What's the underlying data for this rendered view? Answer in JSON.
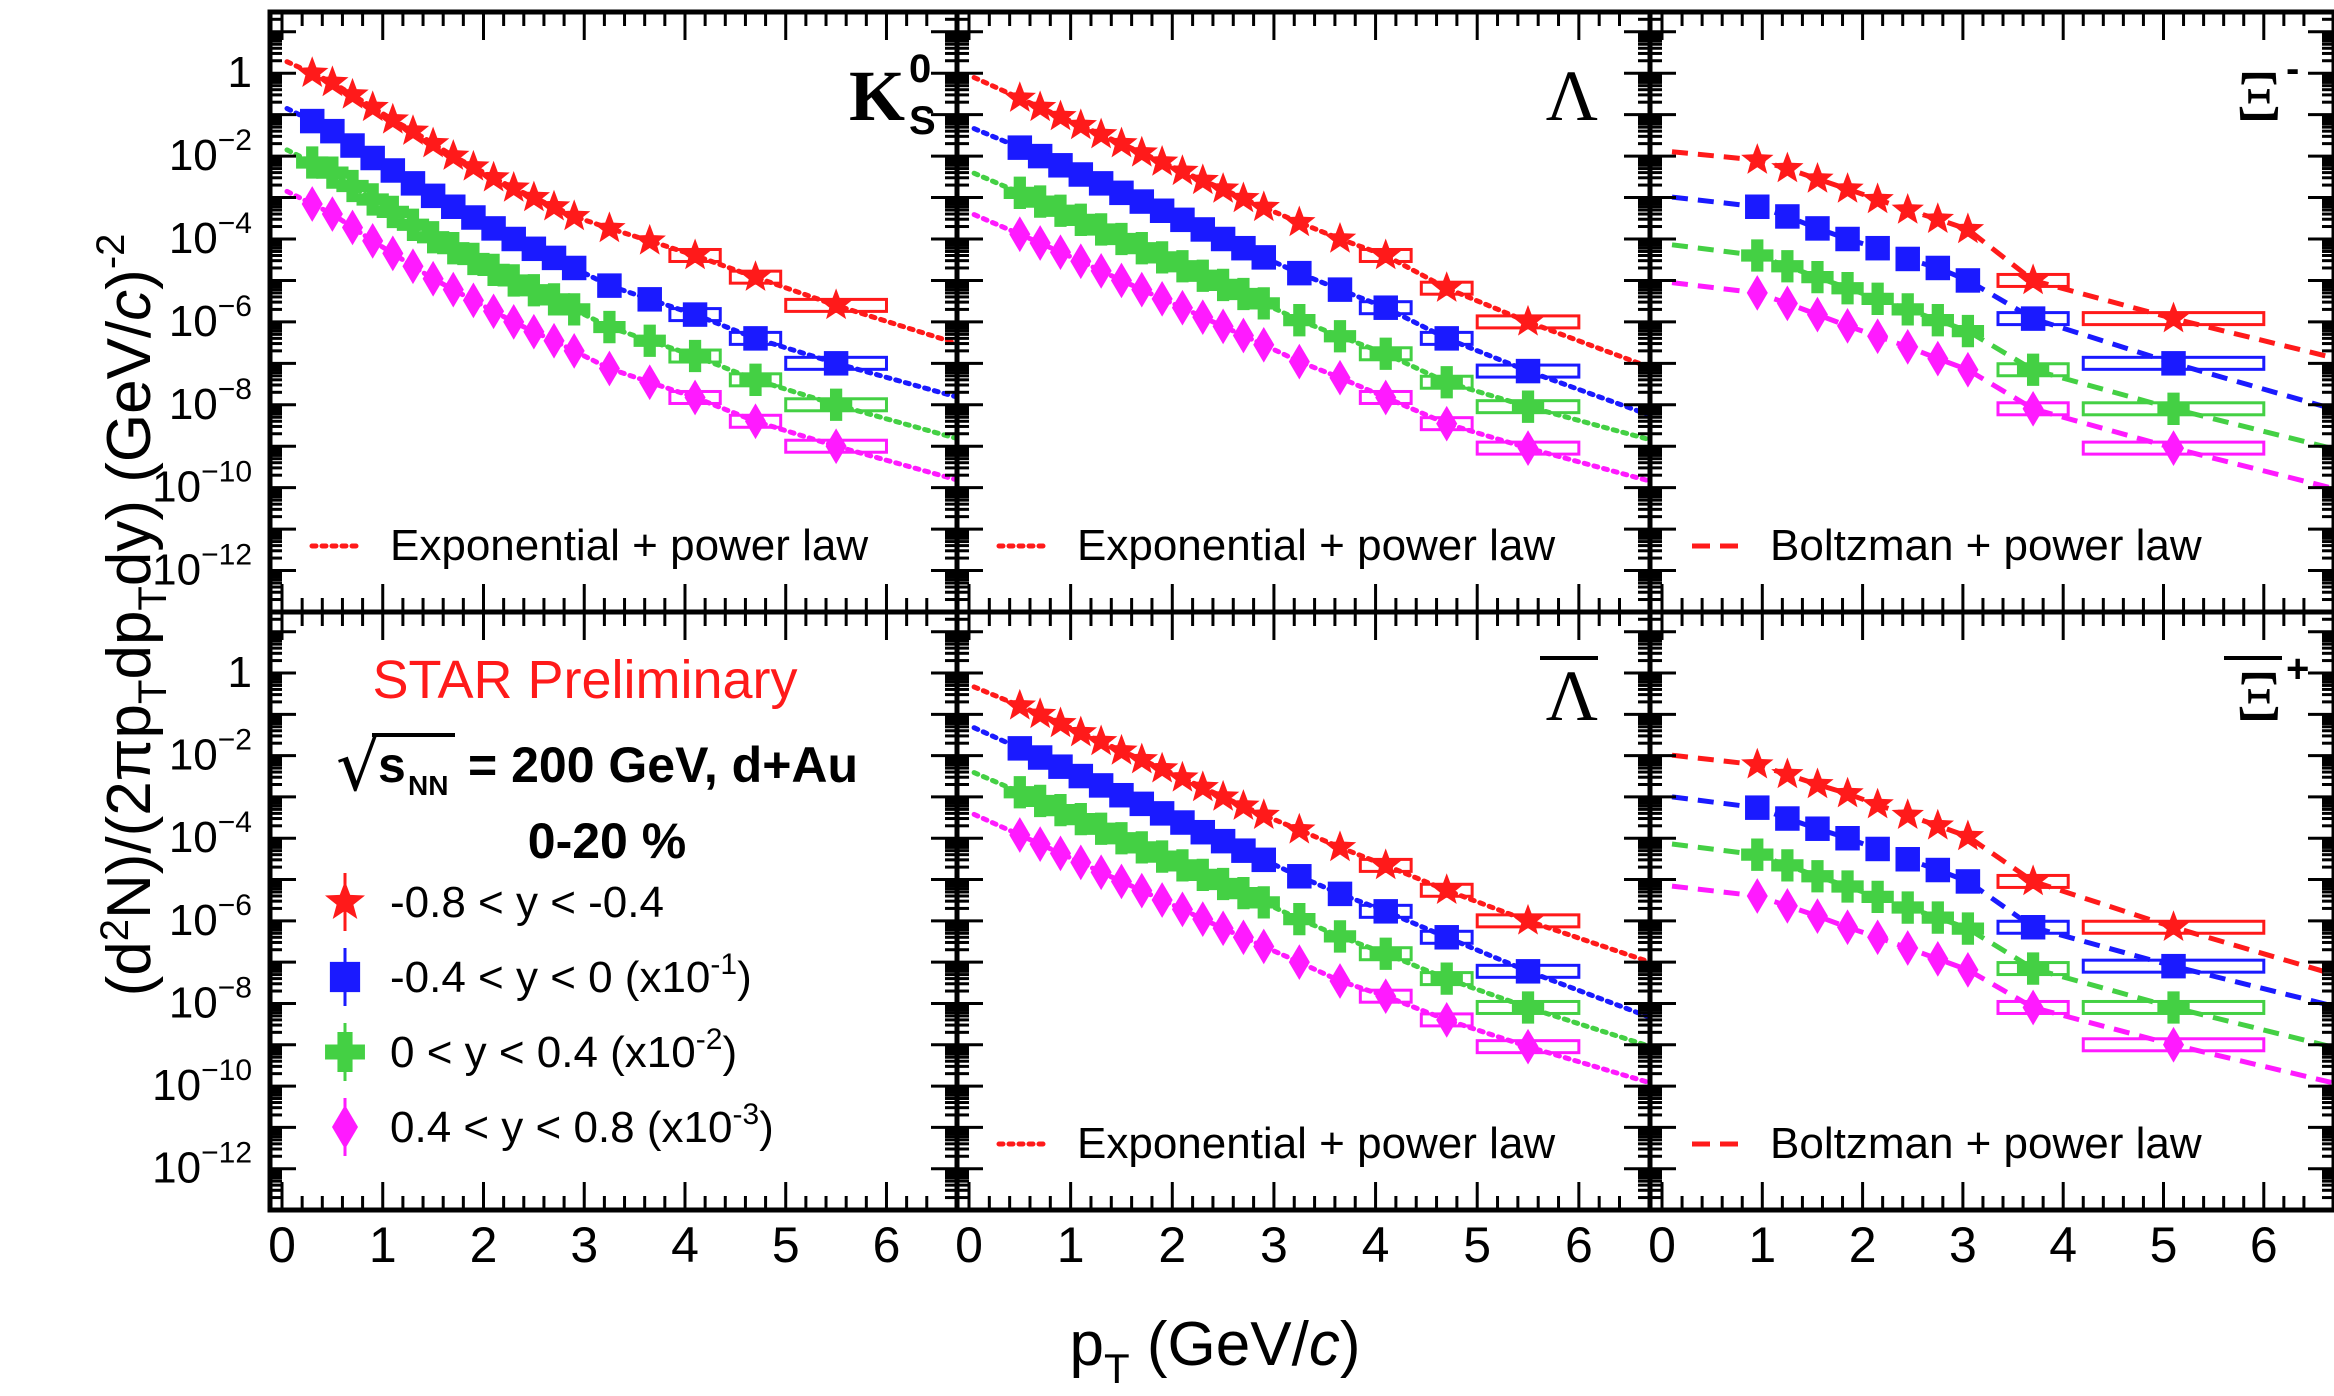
{
  "chart_data": {
    "type": "scatter",
    "y_scale": "log",
    "ylim": [
      1e-13,
      30
    ],
    "xlim": [
      0,
      6.7
    ],
    "xlabel": "p_T (GeV/c)",
    "ylabel": "(d^2N)/(2πp_T dp_T dy) (GeV/c)^-2",
    "x_ticks": [
      "0",
      "1",
      "2",
      "3",
      "4",
      "5",
      "6"
    ],
    "y_ticks": [
      {
        "base": "1",
        "exp": ""
      },
      {
        "base": "10",
        "exp": "−2"
      },
      {
        "base": "10",
        "exp": "−4"
      },
      {
        "base": "10",
        "exp": "−6"
      },
      {
        "base": "10",
        "exp": "−8"
      },
      {
        "base": "10",
        "exp": "−10"
      },
      {
        "base": "10",
        "exp": "−12"
      }
    ],
    "annotations": {
      "preliminary": "STAR Preliminary",
      "energy_text": "= 200 GeV, d+Au",
      "sqrt_symbol": "√",
      "s_label": "s",
      "s_sub": "NN",
      "centrality": "0-20 %"
    },
    "legend": [
      {
        "label": "-0.8 < y < -0.4",
        "color": "#ff1a1a",
        "marker": "star"
      },
      {
        "label": "-0.4 < y < 0 (x10",
        "sup": "-1",
        "tail": ")",
        "color": "#1a1aff",
        "marker": "square"
      },
      {
        "label": "0 < y < 0.4 (x10",
        "sup": "-2",
        "tail": ")",
        "color": "#44d044",
        "marker": "cross"
      },
      {
        "label": "0.4 < y < 0.8 (x10",
        "sup": "-3",
        "tail": ")",
        "color": "#ff1aff",
        "marker": "diamond"
      }
    ],
    "panels": [
      {
        "id": "k0s",
        "particle": "K",
        "particle_sup": "0",
        "particle_sub": "S",
        "overline": false,
        "fit": "dotted",
        "fit_label": "Exponential + power law",
        "series": [
          {
            "x": [
              0.3,
              0.5,
              0.7,
              0.9,
              1.1,
              1.3,
              1.5,
              1.7,
              1.9,
              2.1,
              2.3,
              2.5,
              2.7,
              2.9,
              3.25,
              3.65,
              4.1,
              4.7,
              5.5
            ],
            "y": [
              1.0,
              0.6,
              0.3,
              0.15,
              0.075,
              0.04,
              0.02,
              0.01,
              0.0055,
              0.003,
              0.0017,
              0.001,
              0.0006,
              0.00035,
              0.00018,
              9e-05,
              4e-05,
              1.2e-05,
              2.5e-06
            ]
          },
          {
            "x": [
              0.3,
              0.5,
              0.7,
              0.9,
              1.1,
              1.3,
              1.5,
              1.7,
              1.9,
              2.1,
              2.3,
              2.5,
              2.7,
              2.9,
              3.25,
              3.65,
              4.1,
              4.7,
              5.5
            ],
            "y": [
              0.07,
              0.04,
              0.018,
              0.009,
              0.0045,
              0.0022,
              0.0011,
              0.0006,
              0.00033,
              0.00018,
              0.0001,
              5.8e-05,
              3.5e-05,
              2e-05,
              7.5e-06,
              3.5e-06,
              1.5e-06,
              4e-07,
              1e-07
            ]
          },
          {
            "x": [
              0.3,
              0.5,
              0.7,
              0.9,
              1.1,
              1.3,
              1.5,
              1.7,
              1.9,
              2.1,
              2.3,
              2.5,
              2.7,
              2.9,
              3.25,
              3.65,
              4.1,
              4.7,
              5.5
            ],
            "y": [
              0.007,
              0.004,
              0.0019,
              0.0009,
              0.00045,
              0.00022,
              0.00011,
              6e-05,
              3.3e-05,
              1.8e-05,
              1e-05,
              5.8e-06,
              3.5e-06,
              2e-06,
              7.5e-07,
              3.5e-07,
              1.5e-07,
              4e-08,
              1e-08
            ]
          },
          {
            "x": [
              0.3,
              0.5,
              0.7,
              0.9,
              1.1,
              1.3,
              1.5,
              1.7,
              1.9,
              2.1,
              2.3,
              2.5,
              2.7,
              2.9,
              3.25,
              3.65,
              4.1,
              4.7,
              5.5
            ],
            "y": [
              0.0007,
              0.0004,
              0.00019,
              9e-05,
              4.5e-05,
              2.2e-05,
              1.1e-05,
              6e-06,
              3.3e-06,
              1.8e-06,
              1e-06,
              5.8e-07,
              3.5e-07,
              2e-07,
              7.5e-08,
              3.5e-08,
              1.5e-08,
              4e-09,
              1e-09
            ]
          }
        ]
      },
      {
        "id": "lambda",
        "particle": "Λ",
        "particle_sup": "",
        "particle_sub": "",
        "overline": false,
        "fit": "dotted",
        "fit_label": "Exponential + power law",
        "series": [
          {
            "x": [
              0.5,
              0.7,
              0.9,
              1.1,
              1.3,
              1.5,
              1.7,
              1.9,
              2.1,
              2.3,
              2.5,
              2.7,
              2.9,
              3.25,
              3.65,
              4.1,
              4.7,
              5.5
            ],
            "y": [
              0.25,
              0.15,
              0.09,
              0.055,
              0.033,
              0.02,
              0.012,
              0.0072,
              0.0043,
              0.0026,
              0.0016,
              0.00095,
              0.00058,
              0.00025,
              0.0001,
              4e-05,
              6.5e-06,
              1e-06
            ]
          },
          {
            "x": [
              0.5,
              0.7,
              0.9,
              1.1,
              1.3,
              1.5,
              1.7,
              1.9,
              2.1,
              2.3,
              2.5,
              2.7,
              2.9,
              3.25,
              3.65,
              4.1,
              4.7,
              5.5
            ],
            "y": [
              0.016,
              0.01,
              0.006,
              0.0036,
              0.0022,
              0.0013,
              0.0008,
              0.00048,
              0.00029,
              0.00017,
              0.0001,
              6e-05,
              3.6e-05,
              1.5e-05,
              6e-06,
              2.2e-06,
              4e-07,
              6.5e-08
            ]
          },
          {
            "x": [
              0.5,
              0.7,
              0.9,
              1.1,
              1.3,
              1.5,
              1.7,
              1.9,
              2.1,
              2.3,
              2.5,
              2.7,
              2.9,
              3.25,
              3.65,
              4.1,
              4.7,
              5.5
            ],
            "y": [
              0.0013,
              0.0008,
              0.00048,
              0.00029,
              0.00017,
              0.0001,
              6e-05,
              3.6e-05,
              2.2e-05,
              1.3e-05,
              7.8e-06,
              4.7e-06,
              2.8e-06,
              1.1e-06,
              4.5e-07,
              1.7e-07,
              3.5e-08,
              9e-09
            ]
          },
          {
            "x": [
              0.5,
              0.7,
              0.9,
              1.1,
              1.3,
              1.5,
              1.7,
              1.9,
              2.1,
              2.3,
              2.5,
              2.7,
              2.9,
              3.25,
              3.65,
              4.1,
              4.7,
              5.5
            ],
            "y": [
              0.00013,
              8e-05,
              4.8e-05,
              2.9e-05,
              1.7e-05,
              1e-05,
              6e-06,
              3.6e-06,
              2.2e-06,
              1.3e-06,
              7.8e-07,
              4.7e-07,
              2.8e-07,
              1.1e-07,
              4.5e-08,
              1.5e-08,
              3.5e-09,
              9e-10
            ]
          }
        ]
      },
      {
        "id": "xi_minus",
        "particle": "Ξ",
        "particle_sup": "-",
        "particle_sub": "",
        "overline": false,
        "fit": "dashed",
        "fit_label": "Boltzman + power law",
        "series": [
          {
            "x": [
              0.95,
              1.25,
              1.55,
              1.85,
              2.15,
              2.45,
              2.75,
              3.05,
              3.7,
              5.1
            ],
            "y": [
              0.008,
              0.005,
              0.0028,
              0.0016,
              0.0009,
              0.0005,
              0.0003,
              0.00017,
              1e-05,
              1.2e-06
            ]
          },
          {
            "x": [
              0.95,
              1.25,
              1.55,
              1.85,
              2.15,
              2.45,
              2.75,
              3.05,
              3.7,
              5.1
            ],
            "y": [
              0.0006,
              0.00035,
              0.00018,
              0.0001,
              6e-05,
              3.3e-05,
              2e-05,
              1e-05,
              1.2e-06,
              1e-07
            ]
          },
          {
            "x": [
              0.95,
              1.25,
              1.55,
              1.85,
              2.15,
              2.45,
              2.75,
              3.05,
              3.7,
              5.1
            ],
            "y": [
              4e-05,
              2.2e-05,
              1.2e-05,
              6.5e-06,
              3.6e-06,
              2e-06,
              1.1e-06,
              6e-07,
              7e-08,
              8e-09
            ]
          },
          {
            "x": [
              0.95,
              1.25,
              1.55,
              1.85,
              2.15,
              2.45,
              2.75,
              3.05,
              3.7,
              5.1
            ],
            "y": [
              5e-06,
              2.8e-06,
              1.5e-06,
              8e-07,
              4.5e-07,
              2.5e-07,
              1.3e-07,
              7e-08,
              8e-09,
              9e-10
            ]
          }
        ]
      },
      {
        "id": "antilambda",
        "particle": "Λ",
        "particle_sup": "",
        "particle_sub": "",
        "overline": true,
        "fit": "dotted",
        "fit_label": "Exponential + power law",
        "series": [
          {
            "x": [
              0.5,
              0.7,
              0.9,
              1.1,
              1.3,
              1.5,
              1.7,
              1.9,
              2.1,
              2.3,
              2.5,
              2.7,
              2.9,
              3.25,
              3.65,
              4.1,
              4.7,
              5.5
            ],
            "y": [
              0.16,
              0.1,
              0.06,
              0.036,
              0.022,
              0.013,
              0.008,
              0.0048,
              0.0029,
              0.0017,
              0.001,
              0.0006,
              0.00036,
              0.00016,
              6e-05,
              2.2e-05,
              5.5e-06,
              1e-06
            ]
          },
          {
            "x": [
              0.5,
              0.7,
              0.9,
              1.1,
              1.3,
              1.5,
              1.7,
              1.9,
              2.1,
              2.3,
              2.5,
              2.7,
              2.9,
              3.25,
              3.65,
              4.1,
              4.7,
              5.5
            ],
            "y": [
              0.015,
              0.009,
              0.0054,
              0.0032,
              0.0019,
              0.0011,
              0.00068,
              0.0004,
              0.00024,
              0.00014,
              8.5e-05,
              5e-05,
              3e-05,
              1.2e-05,
              4.5e-06,
              1.7e-06,
              4e-07,
              6e-08
            ]
          },
          {
            "x": [
              0.5,
              0.7,
              0.9,
              1.1,
              1.3,
              1.5,
              1.7,
              1.9,
              2.1,
              2.3,
              2.5,
              2.7,
              2.9,
              3.25,
              3.65,
              4.1,
              4.7,
              5.5
            ],
            "y": [
              0.0013,
              0.0008,
              0.00048,
              0.00029,
              0.00017,
              0.0001,
              6e-05,
              3.6e-05,
              2.2e-05,
              1.3e-05,
              7.8e-06,
              4.7e-06,
              2.8e-06,
              1.1e-06,
              4.2e-07,
              1.6e-07,
              4e-08,
              8e-09
            ]
          },
          {
            "x": [
              0.5,
              0.7,
              0.9,
              1.1,
              1.3,
              1.5,
              1.7,
              1.9,
              2.1,
              2.3,
              2.5,
              2.7,
              2.9,
              3.25,
              3.65,
              4.1,
              4.7,
              5.5
            ],
            "y": [
              0.00012,
              7.2e-05,
              4.3e-05,
              2.6e-05,
              1.5e-05,
              9e-06,
              5.4e-06,
              3.2e-06,
              1.9e-06,
              1.1e-06,
              6.6e-07,
              4e-07,
              2.4e-07,
              1e-07,
              3.5e-08,
              1.5e-08,
              4e-09,
              9e-10
            ]
          }
        ]
      },
      {
        "id": "xi_plus",
        "particle": "Ξ",
        "particle_sup": "+",
        "particle_sub": "",
        "overline": true,
        "fit": "dashed",
        "fit_label": "Boltzman + power law",
        "series": [
          {
            "x": [
              0.95,
              1.25,
              1.55,
              1.85,
              2.15,
              2.45,
              2.75,
              3.05,
              3.7,
              5.1
            ],
            "y": [
              0.006,
              0.0035,
              0.002,
              0.0012,
              0.00065,
              0.00036,
              0.0002,
              0.00011,
              9e-06,
              7e-07
            ]
          },
          {
            "x": [
              0.95,
              1.25,
              1.55,
              1.85,
              2.15,
              2.45,
              2.75,
              3.05,
              3.7,
              5.1
            ],
            "y": [
              0.00055,
              0.0003,
              0.00017,
              0.0001,
              5.5e-05,
              3.1e-05,
              1.7e-05,
              9e-06,
              7e-07,
              8e-08
            ]
          },
          {
            "x": [
              0.95,
              1.25,
              1.55,
              1.85,
              2.15,
              2.45,
              2.75,
              3.05,
              3.7,
              5.1
            ],
            "y": [
              4e-05,
              2.2e-05,
              1.2e-05,
              6.8e-06,
              3.8e-06,
              2.1e-06,
              1.2e-06,
              6.5e-07,
              7e-08,
              8e-09
            ]
          },
          {
            "x": [
              0.95,
              1.25,
              1.55,
              1.85,
              2.15,
              2.45,
              2.75,
              3.05,
              3.7,
              5.1
            ],
            "y": [
              4e-06,
              2.3e-06,
              1.3e-06,
              7e-07,
              4e-07,
              2.2e-07,
              1.2e-07,
              6.5e-08,
              8e-09,
              1e-09
            ]
          }
        ]
      }
    ]
  }
}
